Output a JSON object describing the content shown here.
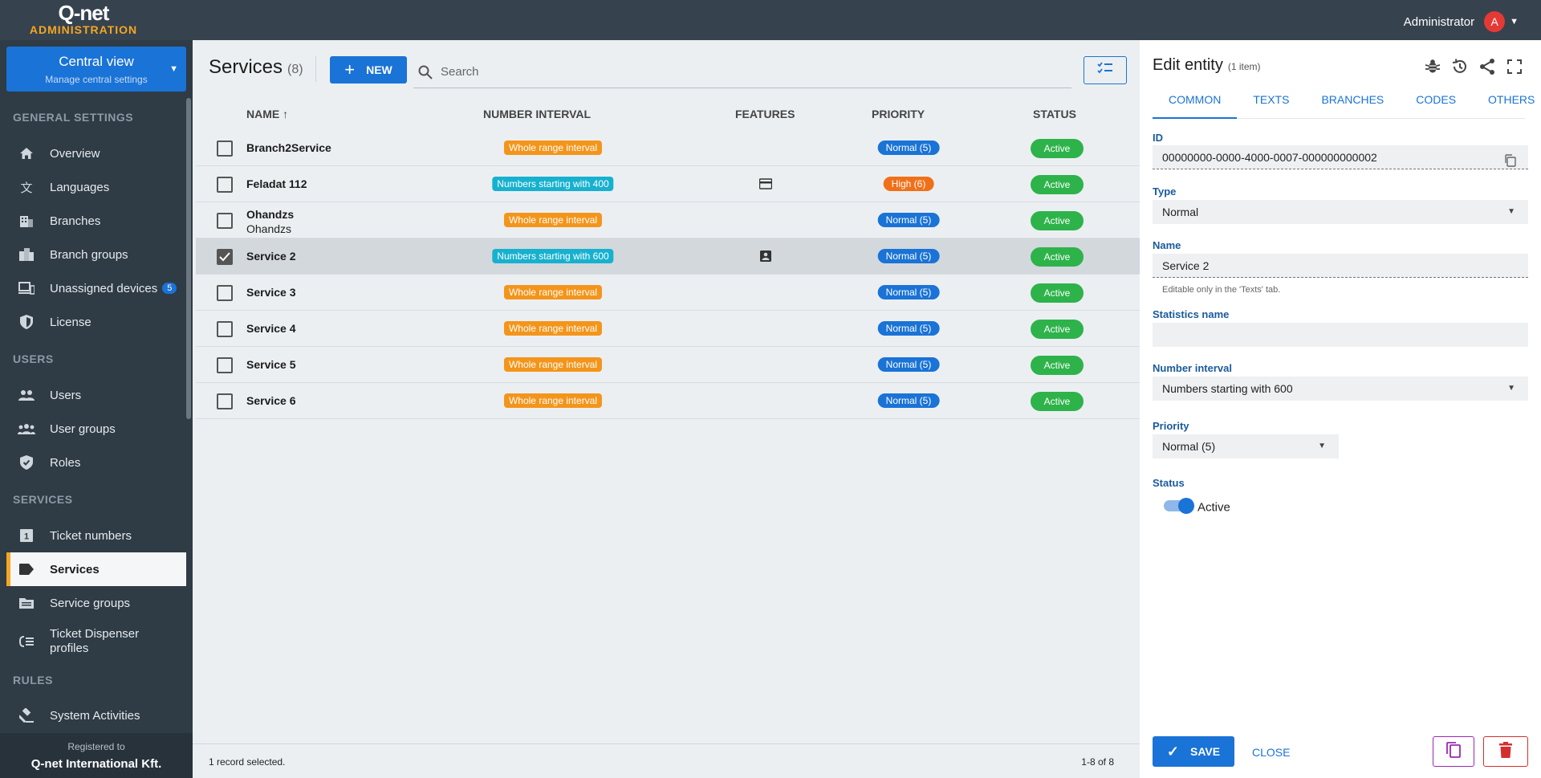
{
  "header": {
    "logo_main": "Q-net",
    "logo_sub": "ADMINISTRATION",
    "user_name": "Administrator",
    "avatar_letter": "A"
  },
  "sidebar": {
    "central_title": "Central view",
    "central_subtitle": "Manage central settings",
    "sections": [
      {
        "title": "GENERAL SETTINGS"
      },
      {
        "title": "USERS"
      },
      {
        "title": "SERVICES"
      },
      {
        "title": "RULES"
      }
    ],
    "items": [
      {
        "label": "Overview",
        "icon": "home-icon"
      },
      {
        "label": "Languages",
        "icon": "translate-icon"
      },
      {
        "label": "Branches",
        "icon": "building-icon"
      },
      {
        "label": "Branch groups",
        "icon": "buildings-icon"
      },
      {
        "label": "Unassigned devices",
        "icon": "devices-icon",
        "badge": "5"
      },
      {
        "label": "License",
        "icon": "shield-icon"
      },
      {
        "label": "Users",
        "icon": "users-icon"
      },
      {
        "label": "User groups",
        "icon": "user-groups-icon"
      },
      {
        "label": "Roles",
        "icon": "shield-check-icon"
      },
      {
        "label": "Ticket numbers",
        "icon": "ticket-number-icon"
      },
      {
        "label": "Services",
        "icon": "tag-icon"
      },
      {
        "label": "Service groups",
        "icon": "folder-icon"
      },
      {
        "label": "Ticket Dispenser profiles",
        "icon": "list-icon"
      },
      {
        "label": "System Activities",
        "icon": "gavel-icon"
      }
    ],
    "registered_label": "Registered to",
    "registered_org": "Q-net International Kft."
  },
  "main": {
    "title": "Services",
    "count": "(8)",
    "new_label": "NEW",
    "search_placeholder": "Search",
    "columns": {
      "name": "NAME",
      "interval": "NUMBER INTERVAL",
      "features": "FEATURES",
      "priority": "PRIORITY",
      "status": "STATUS"
    },
    "rows": [
      {
        "name": "Branch2Service",
        "sub": "",
        "interval": "Whole range interval",
        "interval_color": "orange",
        "feature": "",
        "priority": "Normal (5)",
        "priority_color": "blue",
        "status": "Active",
        "selected": false
      },
      {
        "name": "Feladat 112",
        "sub": "",
        "interval": "Numbers starting with 400",
        "interval_color": "teal",
        "feature": "card-icon",
        "priority": "High (6)",
        "priority_color": "red",
        "status": "Active",
        "selected": false
      },
      {
        "name": "Ohandzs",
        "sub": "Ohandzs",
        "interval": "Whole range interval",
        "interval_color": "orange",
        "feature": "",
        "priority": "Normal (5)",
        "priority_color": "blue",
        "status": "Active",
        "selected": false
      },
      {
        "name": "Service 2",
        "sub": "",
        "interval": "Numbers starting with 600",
        "interval_color": "teal",
        "feature": "contact-card-icon",
        "priority": "Normal (5)",
        "priority_color": "blue",
        "status": "Active",
        "selected": true
      },
      {
        "name": "Service 3",
        "sub": "",
        "interval": "Whole range interval",
        "interval_color": "orange",
        "feature": "",
        "priority": "Normal (5)",
        "priority_color": "blue",
        "status": "Active",
        "selected": false
      },
      {
        "name": "Service 4",
        "sub": "",
        "interval": "Whole range interval",
        "interval_color": "orange",
        "feature": "",
        "priority": "Normal (5)",
        "priority_color": "blue",
        "status": "Active",
        "selected": false
      },
      {
        "name": "Service 5",
        "sub": "",
        "interval": "Whole range interval",
        "interval_color": "orange",
        "feature": "",
        "priority": "Normal (5)",
        "priority_color": "blue",
        "status": "Active",
        "selected": false
      },
      {
        "name": "Service 6",
        "sub": "",
        "interval": "Whole range interval",
        "interval_color": "orange",
        "feature": "",
        "priority": "Normal (5)",
        "priority_color": "blue",
        "status": "Active",
        "selected": false
      }
    ],
    "footer_selected": "1 record selected.",
    "footer_range": "1-8 of 8"
  },
  "panel": {
    "title": "Edit entity",
    "title_count": "(1 item)",
    "tabs": [
      "COMMON",
      "TEXTS",
      "BRANCHES",
      "CODES",
      "OTHERS"
    ],
    "id_label": "ID",
    "id_value": "00000000-0000-4000-0007-000000000002",
    "type_label": "Type",
    "type_value": "Normal",
    "name_label": "Name",
    "name_value": "Service 2",
    "name_hint": "Editable only in the 'Texts' tab.",
    "stat_label": "Statistics name",
    "stat_value": "",
    "interval_label": "Number interval",
    "interval_value": "Numbers starting with 600",
    "priority_label": "Priority",
    "priority_value": "Normal (5)",
    "status_label": "Status",
    "status_value": "Active",
    "save_label": "SAVE",
    "close_label": "CLOSE"
  },
  "colors": {
    "accent": "#1a73d6",
    "orange": "#f4951b",
    "teal": "#17b1cf",
    "green": "#2db34a",
    "sidebar": "#2f3b45"
  }
}
